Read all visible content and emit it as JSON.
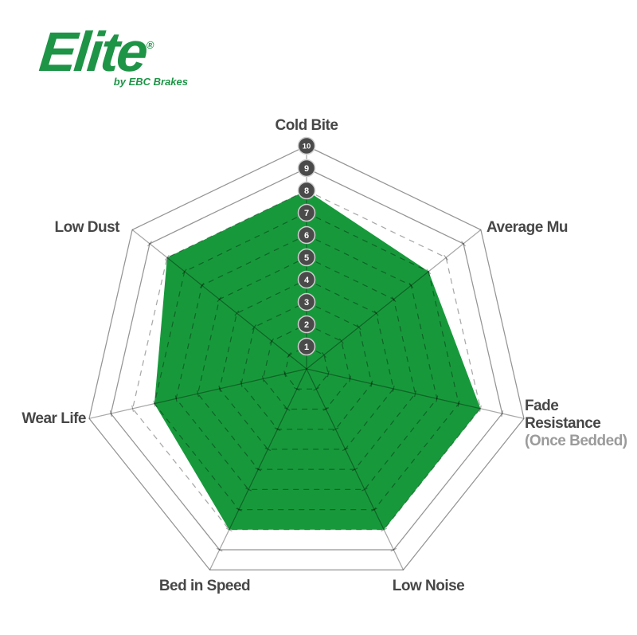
{
  "logo": {
    "brand": "Elite",
    "registered": "®",
    "tagline": "by EBC Brakes"
  },
  "labels": {
    "cold_bite": "Cold Bite",
    "average_mu": "Average Mu",
    "fade_line1": "Fade",
    "fade_line2": "Resistance",
    "fade_note": "(Once Bedded)",
    "low_noise": "Low Noise",
    "bed_in_speed": "Bed in Speed",
    "wear_life": "Wear Life",
    "low_dust": "Low Dust"
  },
  "colors": {
    "fill_green": "#17993B",
    "logo_green": "#1E9447",
    "label_gray": "#474747",
    "note_gray": "#9B9B9B",
    "grid_line": "rgba(0,0,0,0.34)",
    "solid_ring_line": "rgba(0,0,0,0.42)",
    "circle_fill": "#4A4A4A",
    "circle_ring": "#CFCFCF",
    "circle_text": "#FFFFFF"
  },
  "chart_data": {
    "type": "radar",
    "title": "",
    "categories": [
      "Cold Bite",
      "Average Mu",
      "Fade Resistance (Once Bedded)",
      "Low Noise",
      "Bed in Speed",
      "Wear Life",
      "Low Dust"
    ],
    "values": [
      8,
      7,
      8,
      8,
      8,
      7,
      8
    ],
    "scale_min": 0,
    "scale_max": 10,
    "tick_labels": [
      "1",
      "2",
      "3",
      "4",
      "5",
      "6",
      "7",
      "8",
      "9",
      "10"
    ],
    "grid": {
      "solid_rings": [
        9,
        10
      ],
      "dashed_rings": [
        1,
        2,
        3,
        4,
        5,
        6,
        7,
        8
      ]
    },
    "legend_position": "none",
    "axes_start": "top",
    "direction": "clockwise"
  }
}
